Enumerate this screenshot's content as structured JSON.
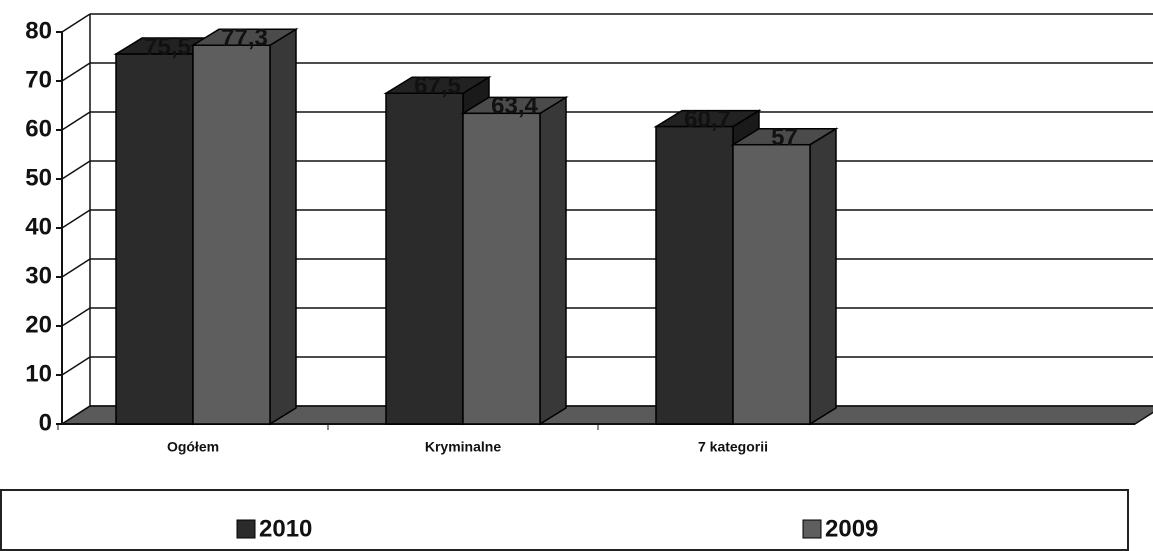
{
  "chart_data": {
    "type": "bar3d",
    "categories": [
      "Ogółem",
      "Kryminalne",
      "7 kategorii"
    ],
    "series": [
      {
        "name": "2010",
        "color": "#2b2b2b",
        "values": [
          75.5,
          67.5,
          60.7
        ],
        "value_labels": [
          "75,5",
          "67,5",
          "60,7"
        ]
      },
      {
        "name": "2009",
        "color": "#5e5e5e",
        "values": [
          77.3,
          63.4,
          57
        ],
        "value_labels": [
          "77,3",
          "63,4",
          "57"
        ]
      }
    ],
    "ylim": [
      0,
      80
    ],
    "yticks": [
      0,
      10,
      20,
      30,
      40,
      50,
      60,
      70,
      80
    ],
    "grid": true,
    "legend": "bottom"
  }
}
